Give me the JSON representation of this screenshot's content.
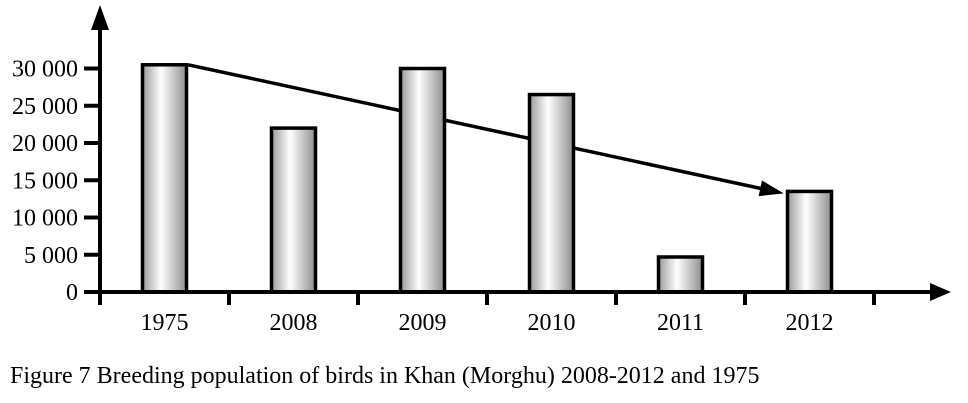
{
  "figure": {
    "caption": "Figure 7 Breeding population of birds in Khan (Morghu) 2008-2012 and 1975"
  },
  "chart_data": {
    "type": "bar",
    "title": "",
    "xlabel": "",
    "ylabel": "",
    "categories": [
      "1975",
      "2008",
      "2009",
      "2010",
      "2011",
      "2012"
    ],
    "values": [
      30500,
      22000,
      30000,
      26500,
      4700,
      13500
    ],
    "ylim": [
      0,
      33000
    ],
    "y_ticks": [
      {
        "value": 0,
        "label": "0"
      },
      {
        "value": 5000,
        "label": "5 000"
      },
      {
        "value": 10000,
        "label": "10 000"
      },
      {
        "value": 15000,
        "label": "15 000"
      },
      {
        "value": 20000,
        "label": "20 000"
      },
      {
        "value": 25000,
        "label": "25 000"
      },
      {
        "value": 30000,
        "label": "30 000"
      }
    ],
    "grid": false,
    "legend": false,
    "axis_color": "#000000",
    "bar_style": {
      "gradient": [
        "#9a9a9a",
        "#ffffff",
        "#8e8e8e"
      ],
      "border_color": "#000000"
    },
    "annotations": [
      {
        "type": "trend-arrow",
        "description": "declining trend arrow from top of 1975 bar to top of 2012 bar",
        "from": {
          "category": "1975",
          "value": 30500
        },
        "to": {
          "category": "2012",
          "value": 13500
        },
        "color": "#000000"
      }
    ]
  }
}
